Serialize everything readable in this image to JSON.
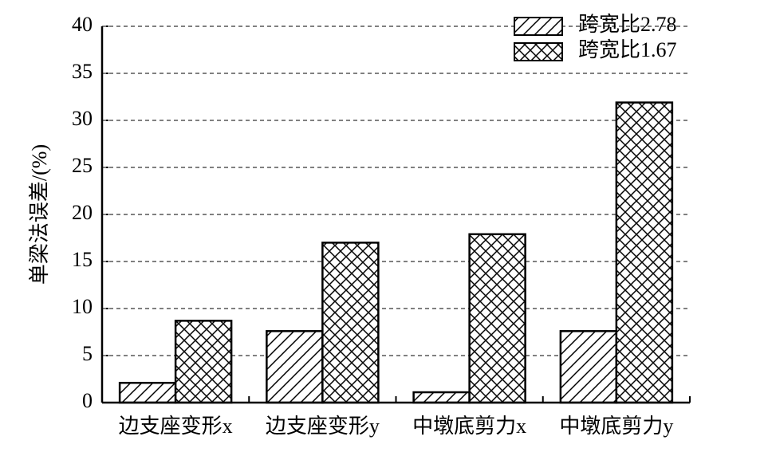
{
  "chart_data": {
    "type": "bar",
    "ylabel": "单梁法误差/(%)",
    "categories": [
      "边支座变形x",
      "边支座变形y",
      "中墩底剪力x",
      "中墩底剪力y"
    ],
    "series": [
      {
        "name": "跨宽比2.78",
        "color": "#000000",
        "hatch": "diagonal",
        "values": [
          2.1,
          7.6,
          1.1,
          7.6
        ]
      },
      {
        "name": "跨宽比1.67",
        "color": "#000000",
        "hatch": "cross",
        "values": [
          8.7,
          17.0,
          17.9,
          31.9
        ]
      }
    ],
    "ylim": [
      0,
      40
    ],
    "yticks": [
      0,
      5,
      10,
      15,
      20,
      25,
      30,
      35,
      40
    ],
    "grid": true,
    "legend": "upper right"
  }
}
